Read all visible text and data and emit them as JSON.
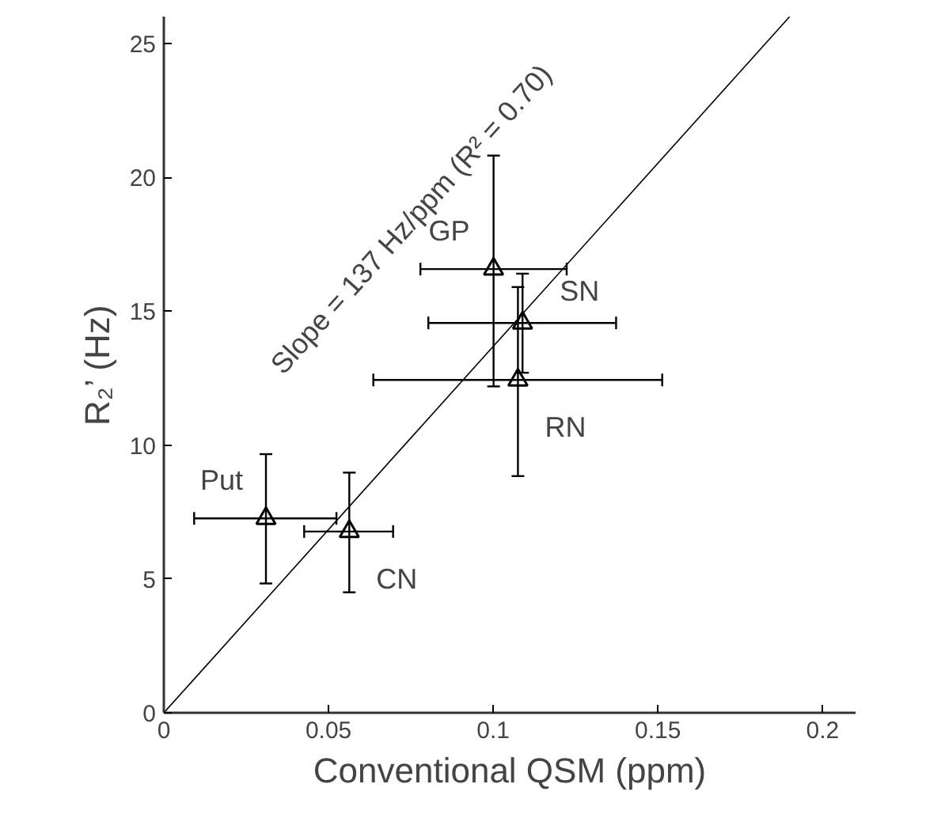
{
  "chart_data": {
    "type": "scatter",
    "xlabel": "Conventional QSM (ppm)",
    "ylabel": "R₂’ (Hz)",
    "xlim": [
      0,
      0.21
    ],
    "ylim": [
      0,
      26
    ],
    "xticks": [
      0,
      0.05,
      0.1,
      0.15,
      0.2
    ],
    "yticks": [
      0,
      5,
      10,
      15,
      20,
      25
    ],
    "grid": false,
    "series": [
      {
        "color": "#000000",
        "marker": "triangle",
        "x": [
          0.031,
          0.0563,
          0.1001,
          0.1089,
          0.1075
        ],
        "values": [
          7.26,
          6.77,
          16.57,
          14.56,
          12.43
        ],
        "errors": [
          [
            4.83,
            9.66
          ],
          [
            4.5,
            8.97
          ],
          [
            12.19,
            20.81
          ],
          [
            12.7,
            16.4
          ],
          [
            8.84,
            15.9
          ]
        ],
        "xerrors": [
          [
            0.0092,
            0.0524
          ],
          [
            0.0426,
            0.0696
          ],
          [
            0.0779,
            0.1223
          ],
          [
            0.0803,
            0.1373
          ],
          [
            0.0636,
            0.1513
          ]
        ]
      },
      {
        "type": "line",
        "color": "#000000",
        "x": [
          0,
          0.19
        ],
        "values": [
          0,
          26.0
        ]
      }
    ],
    "annotations": [
      {
        "text": "Put",
        "x": 0.031,
        "y": 7.26
      },
      {
        "text": "CN",
        "x": 0.0563,
        "y": 6.77
      },
      {
        "text": "GP",
        "x": 0.1001,
        "y": 16.57
      },
      {
        "text": "SN",
        "x": 0.1089,
        "y": 14.56
      },
      {
        "text": "RN",
        "x": 0.1075,
        "y": 12.43
      },
      {
        "text": "Slope = 137 Hz/ppm (R² = 0.70)",
        "x": 0.108,
        "y": 14.8
      }
    ]
  }
}
